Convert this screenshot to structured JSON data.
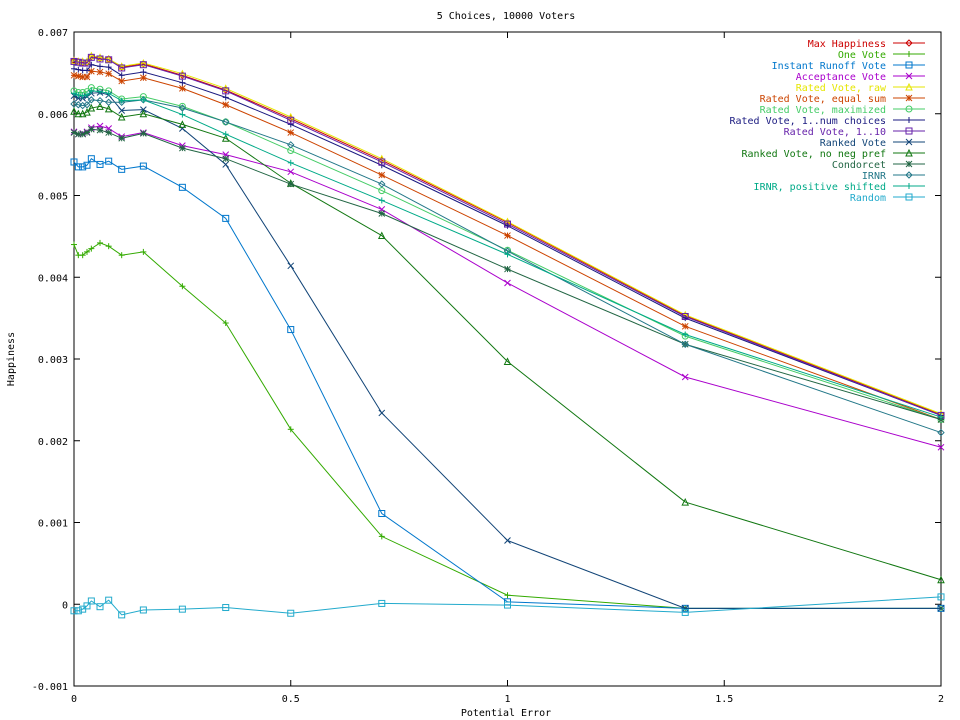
{
  "chart_data": {
    "type": "line",
    "title": "5 Choices, 10000 Voters",
    "xlabel": "Potential Error",
    "ylabel": "Happiness",
    "xlim": [
      0,
      2
    ],
    "ylim": [
      -0.001,
      0.007
    ],
    "x_ticks": [
      "0",
      "0.5",
      "1",
      "1.5",
      "2"
    ],
    "y_ticks": [
      "-0.001",
      "0",
      "0.001",
      "0.002",
      "0.003",
      "0.004",
      "0.005",
      "0.006",
      "0.007"
    ],
    "grid": false,
    "legend_position": "top-right",
    "x": [
      0,
      0.01,
      0.02,
      0.03,
      0.04,
      0.06,
      0.08,
      0.11,
      0.16,
      0.25,
      0.35,
      0.5,
      0.71,
      1.0,
      1.41,
      2.0
    ],
    "series": [
      {
        "name": "Max Happiness",
        "color": "#cc0000",
        "marker": "diamond",
        "values": [
          0.00665,
          0.00664,
          0.00663,
          0.00663,
          0.0067,
          0.00668,
          0.00667,
          0.00657,
          0.00661,
          0.00647,
          0.00629,
          0.00594,
          0.00543,
          0.00467,
          0.00353,
          0.00232
        ]
      },
      {
        "name": "One Vote",
        "color": "#33aa00",
        "marker": "plus",
        "values": [
          0.0044,
          0.00427,
          0.00427,
          0.00431,
          0.00435,
          0.00442,
          0.00438,
          0.00427,
          0.00431,
          0.00389,
          0.00344,
          0.00214,
          0.00083,
          0.00011,
          -5e-05,
          -5e-05
        ]
      },
      {
        "name": "Instant Runoff Vote",
        "color": "#0077cc",
        "marker": "square",
        "values": [
          0.00541,
          0.00535,
          0.00535,
          0.00537,
          0.00545,
          0.00538,
          0.00542,
          0.00532,
          0.00536,
          0.0051,
          0.00472,
          0.00336,
          0.00111,
          3e-05,
          -5e-05,
          -5e-05
        ]
      },
      {
        "name": "Acceptance Vote",
        "color": "#aa00cc",
        "marker": "x",
        "values": [
          0.00578,
          0.00575,
          0.00576,
          0.00578,
          0.00583,
          0.00585,
          0.00582,
          0.00572,
          0.00577,
          0.00561,
          0.0055,
          0.00529,
          0.00483,
          0.00393,
          0.00278,
          0.00192
        ]
      },
      {
        "name": "Rated Vote, raw",
        "color": "#e6e600",
        "marker": "triangle",
        "values": [
          0.00665,
          0.00664,
          0.00664,
          0.00664,
          0.00671,
          0.00669,
          0.00667,
          0.00658,
          0.00662,
          0.00649,
          0.00631,
          0.00596,
          0.00545,
          0.00468,
          0.00354,
          0.00233
        ]
      },
      {
        "name": "Rated Vote, equal sum",
        "color": "#cc4400",
        "marker": "asterisk",
        "values": [
          0.00647,
          0.00646,
          0.00645,
          0.00645,
          0.00652,
          0.00651,
          0.00649,
          0.0064,
          0.00644,
          0.00631,
          0.00611,
          0.00577,
          0.00525,
          0.00451,
          0.0034,
          0.00226
        ]
      },
      {
        "name": "Rated Vote, maximized",
        "color": "#44cc66",
        "marker": "circle",
        "values": [
          0.00628,
          0.00626,
          0.00626,
          0.00627,
          0.00632,
          0.0063,
          0.00628,
          0.00618,
          0.00621,
          0.00609,
          0.0059,
          0.00555,
          0.00506,
          0.00433,
          0.00328,
          0.00226
        ]
      },
      {
        "name": "Rated Vote, 1..num choices",
        "color": "#1a1a80",
        "marker": "plus",
        "values": [
          0.00655,
          0.00654,
          0.00653,
          0.00653,
          0.0066,
          0.00658,
          0.00657,
          0.00647,
          0.00651,
          0.00638,
          0.0062,
          0.00587,
          0.00537,
          0.00463,
          0.0035,
          0.00231
        ]
      },
      {
        "name": "Rated Vote, 1..10",
        "color": "#6622aa",
        "marker": "square",
        "values": [
          0.00664,
          0.00663,
          0.00662,
          0.00662,
          0.00669,
          0.00667,
          0.00666,
          0.00656,
          0.0066,
          0.00646,
          0.00628,
          0.00592,
          0.00541,
          0.00465,
          0.00352,
          0.00231
        ]
      },
      {
        "name": "Ranked Vote",
        "color": "#114477",
        "marker": "x",
        "values": [
          0.00622,
          0.00619,
          0.00619,
          0.00621,
          0.00625,
          0.00626,
          0.00623,
          0.00604,
          0.00605,
          0.00582,
          0.00538,
          0.00414,
          0.00234,
          0.00078,
          -5e-05,
          -5e-05
        ]
      },
      {
        "name": "Ranked Vote, no neg pref",
        "color": "#117711",
        "marker": "triangle",
        "values": [
          0.00603,
          0.006,
          0.006,
          0.00602,
          0.00607,
          0.00609,
          0.00606,
          0.00596,
          0.006,
          0.00587,
          0.0057,
          0.00515,
          0.00451,
          0.00297,
          0.00125,
          0.0003
        ]
      },
      {
        "name": "Condorcet",
        "color": "#226644",
        "marker": "asterisk",
        "values": [
          0.00577,
          0.00575,
          0.00575,
          0.00577,
          0.00581,
          0.0058,
          0.00577,
          0.0057,
          0.00576,
          0.00558,
          0.00545,
          0.00514,
          0.00478,
          0.0041,
          0.00318,
          0.00226
        ]
      },
      {
        "name": "IRNR",
        "color": "#227788",
        "marker": "diamond",
        "values": [
          0.00612,
          0.00611,
          0.0061,
          0.00611,
          0.00617,
          0.00616,
          0.00614,
          0.00614,
          0.00617,
          0.00607,
          0.0059,
          0.00562,
          0.00514,
          0.00432,
          0.00318,
          0.0021
        ]
      },
      {
        "name": "IRNR, positive shifted",
        "color": "#00aa88",
        "marker": "plus",
        "values": [
          0.00625,
          0.00623,
          0.00622,
          0.00623,
          0.00628,
          0.00627,
          0.00625,
          0.00616,
          0.00617,
          0.00599,
          0.00575,
          0.0054,
          0.00494,
          0.00428,
          0.0033,
          0.00229
        ]
      },
      {
        "name": "Random",
        "color": "#22aacc",
        "marker": "square",
        "values": [
          -8e-05,
          -8e-05,
          -6e-05,
          -2e-05,
          4e-05,
          -3e-05,
          5e-05,
          -0.00013,
          -7e-05,
          -6e-05,
          -4e-05,
          -0.00011,
          1e-05,
          -1e-05,
          -0.0001,
          9e-05
        ]
      }
    ]
  }
}
